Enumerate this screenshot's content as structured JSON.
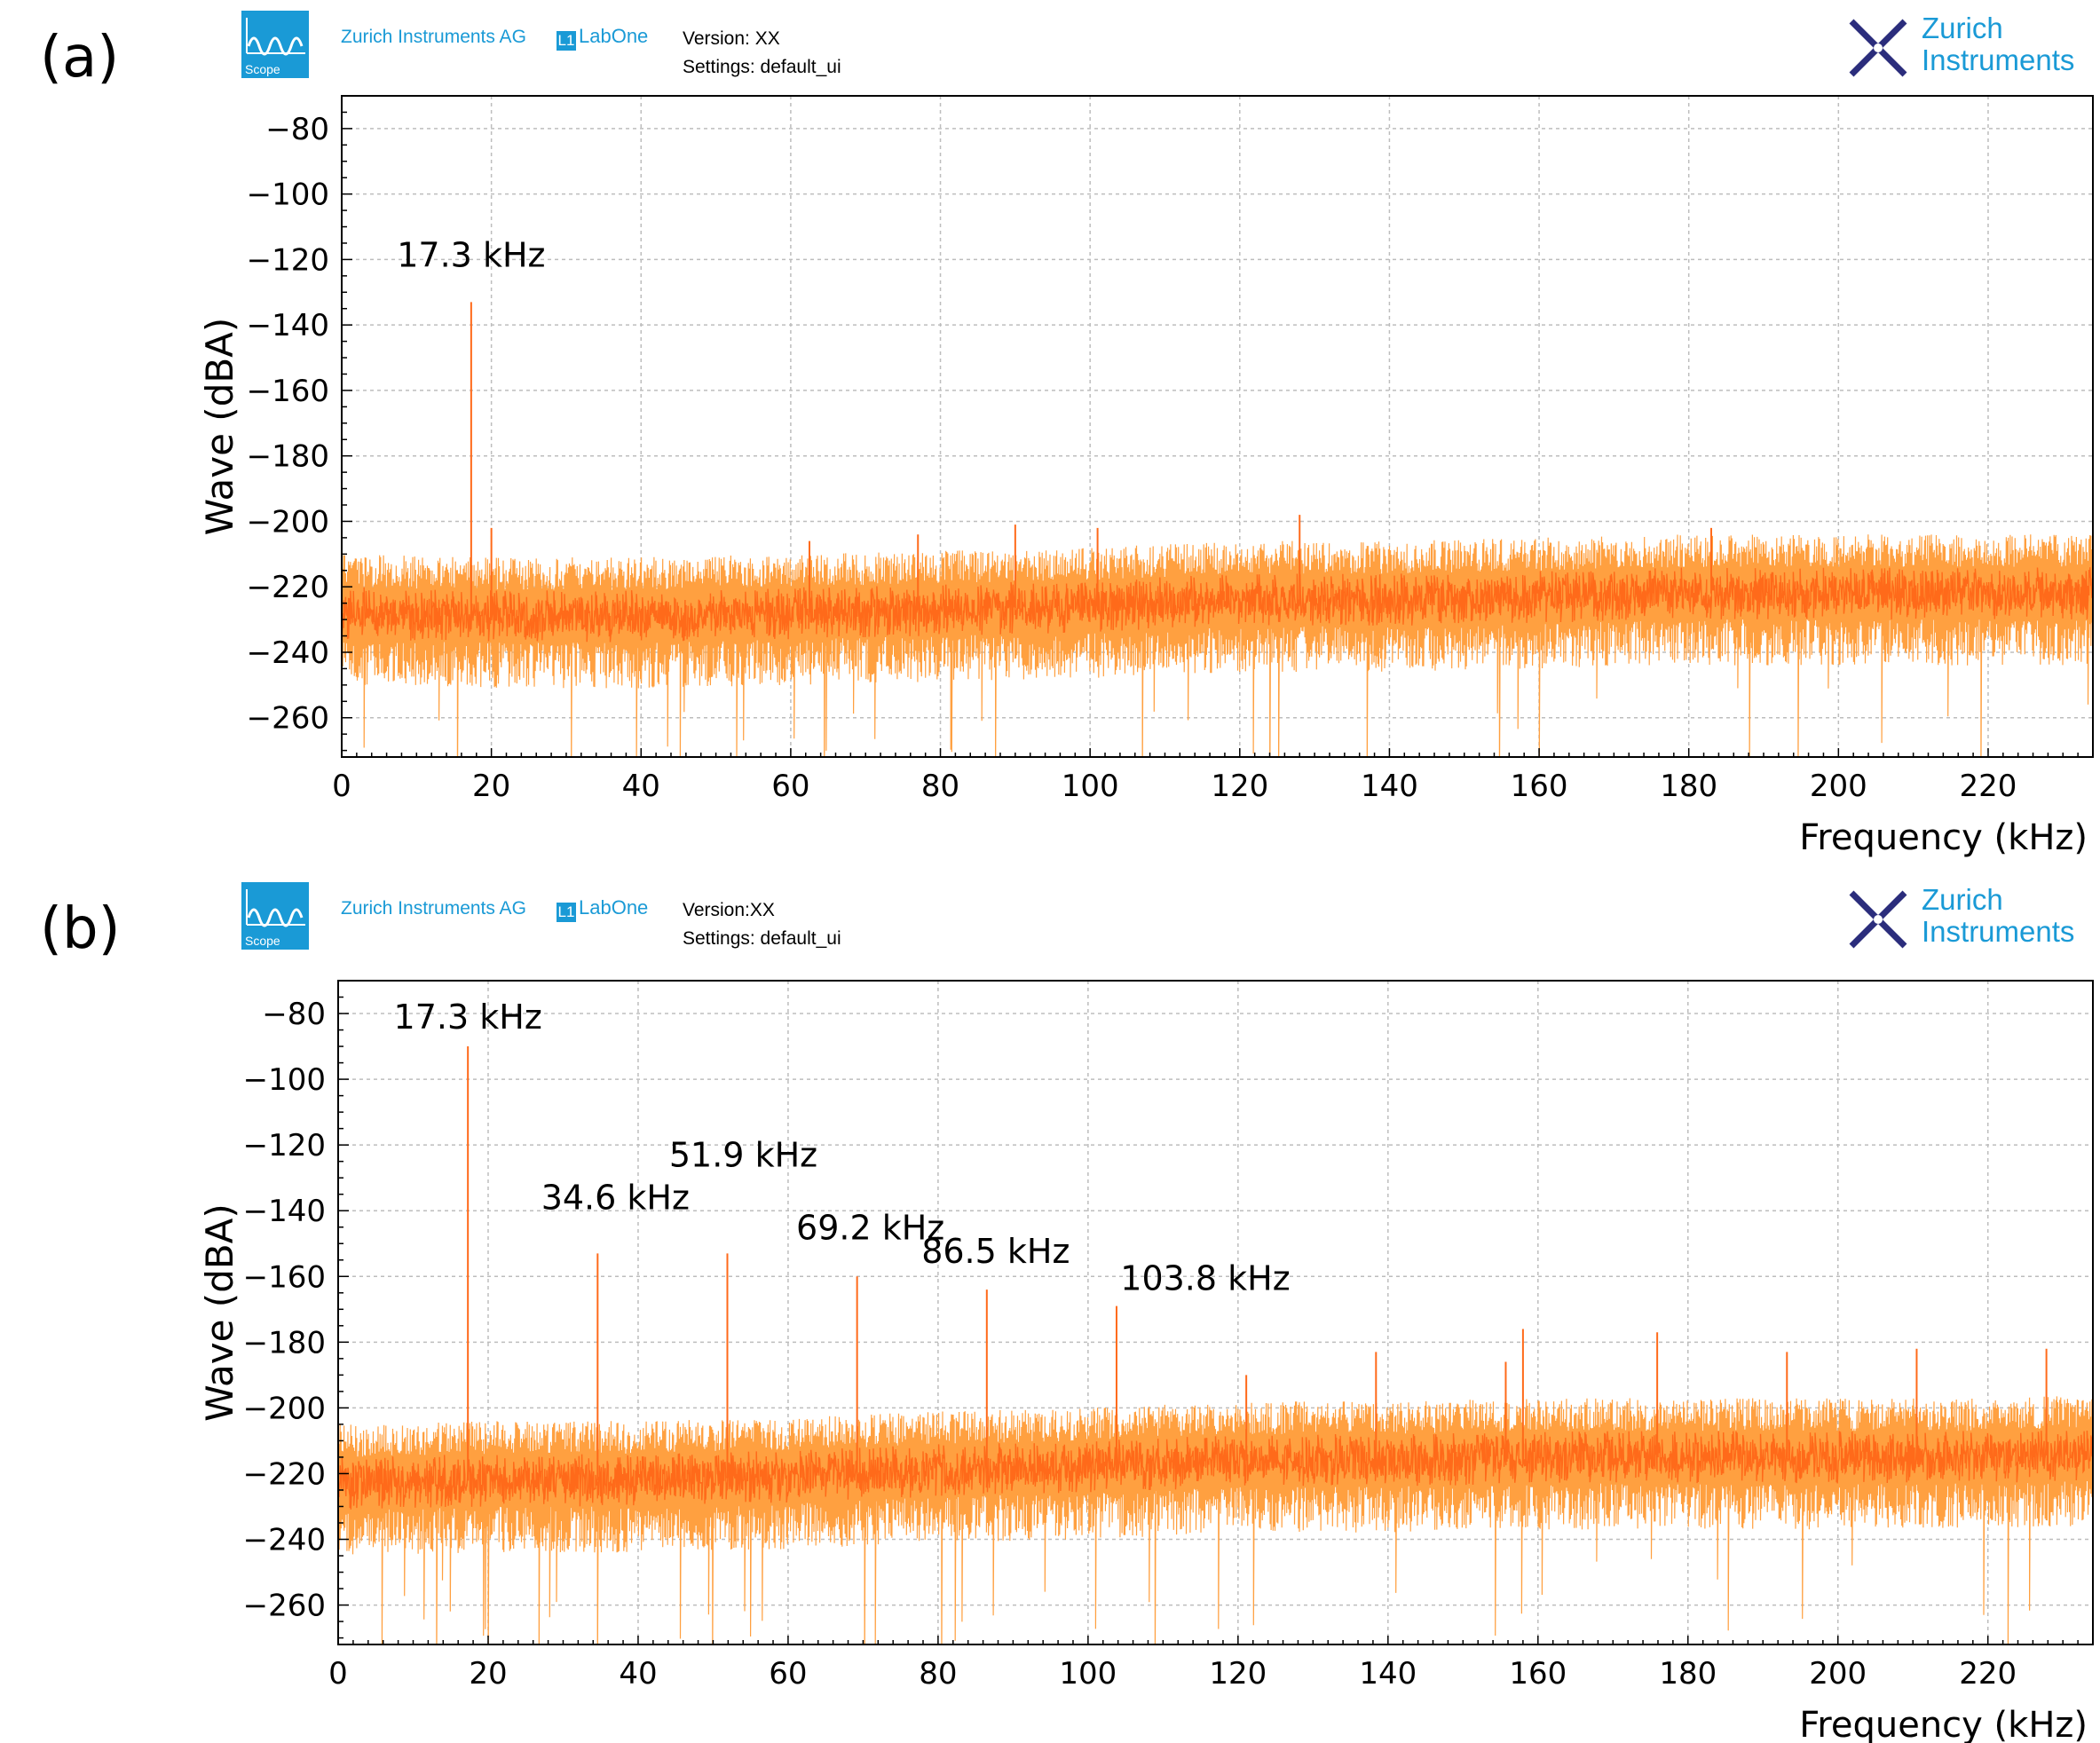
{
  "panels": [
    {
      "label": "(a)",
      "header": {
        "icon_name": "scope-icon",
        "icon_caption": "Scope",
        "company": "Zurich Instruments AG",
        "product": "LabOne",
        "version": "Version: XX",
        "settings": "Settings: default_ui",
        "brand_lines": [
          "Zurich",
          "Instruments"
        ]
      }
    },
    {
      "label": "(b)",
      "header": {
        "icon_name": "scope-icon",
        "icon_caption": "Scope",
        "company": "Zurich Instruments AG",
        "product": "LabOne",
        "version": "Version:XX",
        "settings": "Settings: default_ui",
        "brand_lines": [
          "Zurich",
          "Instruments"
        ]
      }
    }
  ],
  "colors": {
    "trace": "#ff6a1a",
    "trace_light": "#ffa040",
    "accent": "#1a9ad6",
    "brand_mark": "#2b2d7c",
    "grid": "#bdbdbd"
  },
  "chart_data": [
    {
      "type": "line",
      "title": "",
      "xlabel": "Frequency (kHz)",
      "ylabel": "Wave (dBA)",
      "xlim": [
        0,
        234
      ],
      "ylim": [
        -272,
        -70
      ],
      "xticks": [
        0,
        20,
        40,
        60,
        80,
        100,
        120,
        140,
        160,
        180,
        200,
        220
      ],
      "yticks": [
        -80,
        -100,
        -120,
        -140,
        -160,
        -180,
        -200,
        -220,
        -240,
        -260
      ],
      "grid": true,
      "noise_floor": {
        "x": [
          0,
          20,
          40,
          60,
          80,
          100,
          120,
          140,
          160,
          180,
          200,
          220,
          234
        ],
        "y": [
          -228,
          -229,
          -229,
          -228,
          -227,
          -226,
          -224,
          -224,
          -223,
          -222,
          -222,
          -222,
          -222
        ]
      },
      "peaks": [
        {
          "x": 17.3,
          "y": -133,
          "label": "17.3 kHz"
        },
        {
          "x": 20,
          "y": -202
        },
        {
          "x": 62.5,
          "y": -206
        },
        {
          "x": 77,
          "y": -204
        },
        {
          "x": 90,
          "y": -201
        },
        {
          "x": 101,
          "y": -202
        },
        {
          "x": 128,
          "y": -198
        },
        {
          "x": 183,
          "y": -202
        }
      ]
    },
    {
      "type": "line",
      "title": "",
      "xlabel": "Frequency (kHz)",
      "ylabel": "Wave (dBA)",
      "xlim": [
        0,
        234
      ],
      "ylim": [
        -272,
        -70
      ],
      "xticks": [
        0,
        20,
        40,
        60,
        80,
        100,
        120,
        140,
        160,
        180,
        200,
        220
      ],
      "yticks": [
        -80,
        -100,
        -120,
        -140,
        -160,
        -180,
        -200,
        -220,
        -240,
        -260
      ],
      "grid": true,
      "noise_floor": {
        "x": [
          0,
          20,
          40,
          60,
          80,
          100,
          120,
          140,
          160,
          180,
          200,
          220,
          234
        ],
        "y": [
          -223,
          -222,
          -222,
          -221,
          -219,
          -218,
          -216,
          -216,
          -215,
          -215,
          -215,
          -215,
          -214
        ]
      },
      "peaks": [
        {
          "x": 17.3,
          "y": -90,
          "label": "17.3 kHz"
        },
        {
          "x": 34.6,
          "y": -153,
          "label": "34.6 kHz"
        },
        {
          "x": 51.9,
          "y": -153,
          "label": "51.9 kHz"
        },
        {
          "x": 69.2,
          "y": -160,
          "label": "69.2 kHz"
        },
        {
          "x": 86.5,
          "y": -164,
          "label": "86.5 kHz"
        },
        {
          "x": 103.8,
          "y": -169,
          "label": "103.8 kHz"
        },
        {
          "x": 121.1,
          "y": -190
        },
        {
          "x": 138.4,
          "y": -183
        },
        {
          "x": 155.7,
          "y": -186
        },
        {
          "x": 158,
          "y": -176
        },
        {
          "x": 175.9,
          "y": -177
        },
        {
          "x": 193.2,
          "y": -183
        },
        {
          "x": 210.5,
          "y": -182
        },
        {
          "x": 227.8,
          "y": -182
        }
      ]
    }
  ]
}
